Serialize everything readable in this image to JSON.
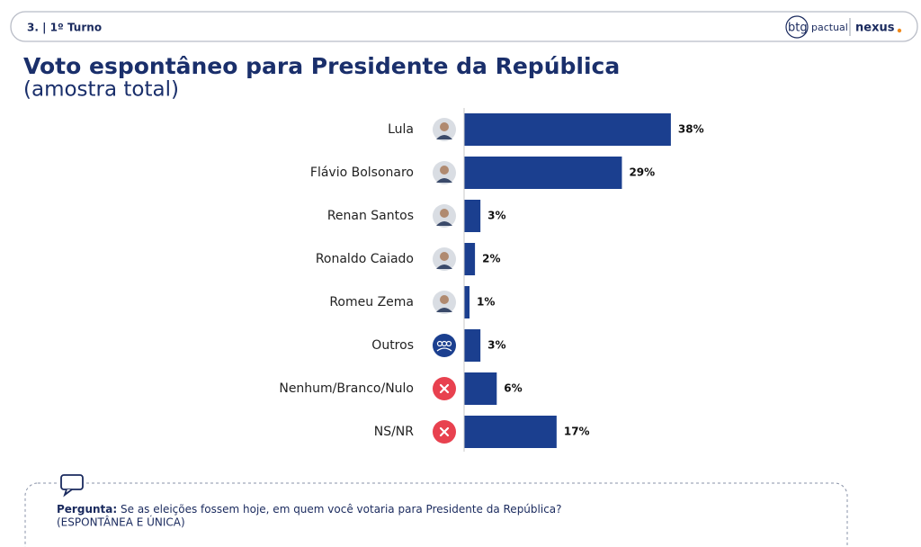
{
  "header": {
    "section": "3. | 1º Turno",
    "brand": "btg",
    "brand_sub": "pactual",
    "partner": "nexus"
  },
  "chart_data": {
    "type": "bar",
    "orientation": "horizontal",
    "title": "Voto espontâneo para Presidente da República",
    "subtitle": "(amostra total)",
    "categories": [
      "Lula",
      "Flávio Bolsonaro",
      "Renan Santos",
      "Ronaldo Caiado",
      "Romeu Zema",
      "Outros",
      "Nenhum/Branco/Nulo",
      "NS/NR"
    ],
    "values": [
      38,
      29,
      3,
      2,
      1,
      3,
      6,
      17
    ],
    "value_labels": [
      "38%",
      "29%",
      "3%",
      "2%",
      "1%",
      "3%",
      "6%",
      "17%"
    ],
    "color": "#1b3f8f"
  },
  "footer": {
    "label": "Pergunta:",
    "question": "Se as eleições fossem hoje, em quem você votaria para Presidente da República?",
    "note": "(ESPONTÂNEA E ÚNICA)"
  }
}
